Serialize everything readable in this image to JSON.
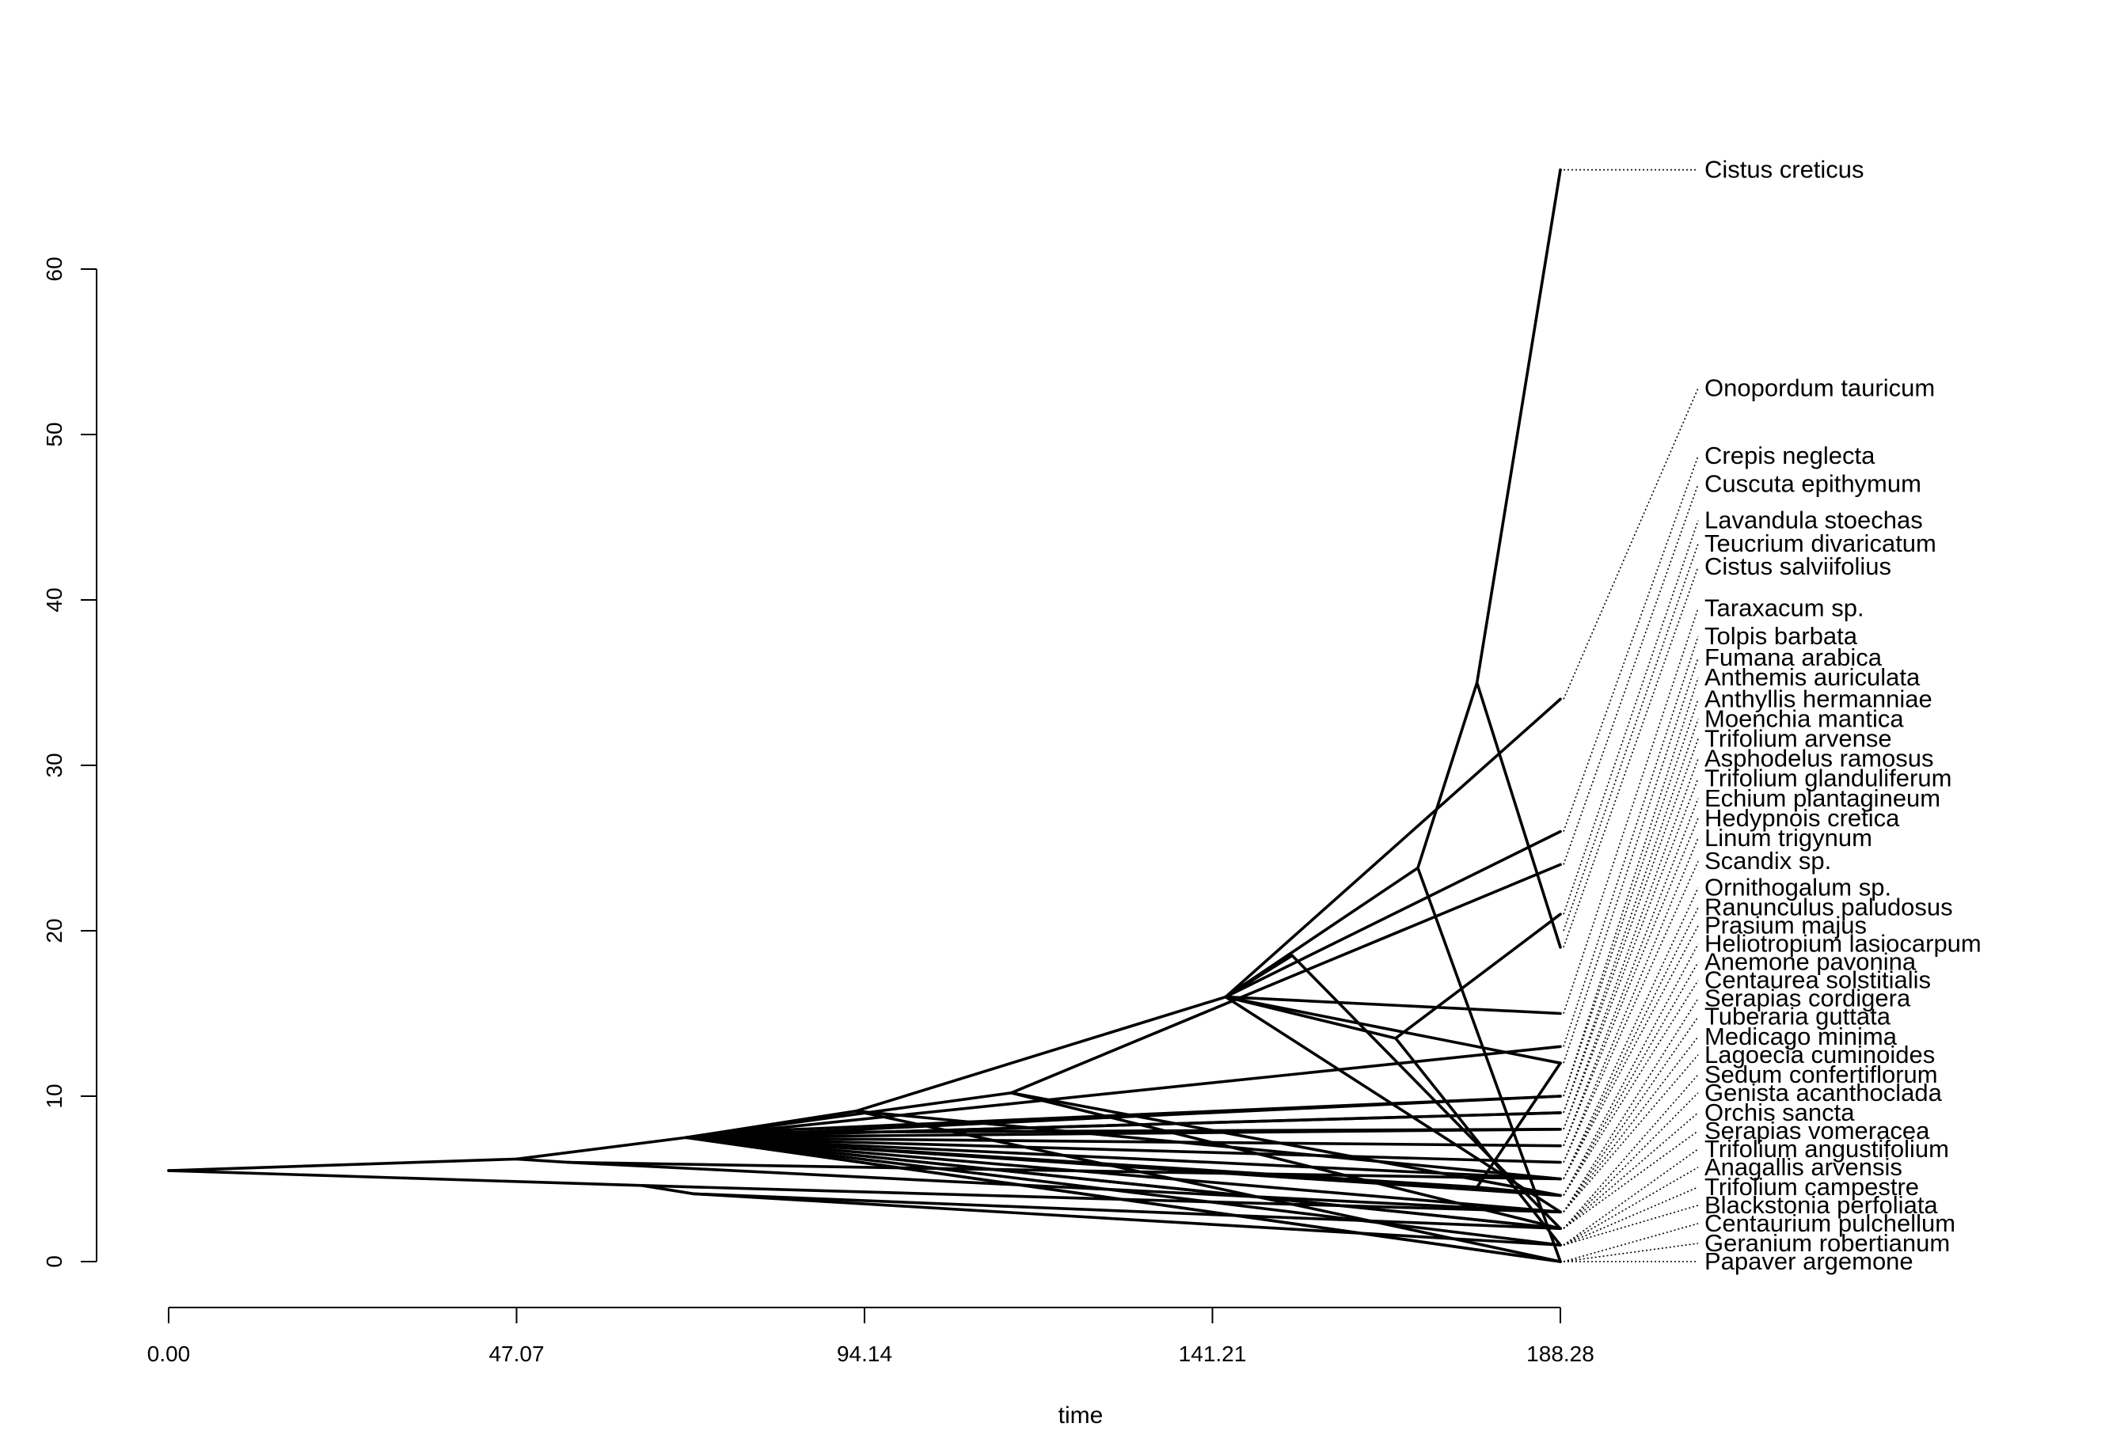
{
  "chart_data": {
    "type": "line",
    "title": "",
    "xlabel": "time",
    "ylabel": "",
    "xlim": [
      0,
      188.28
    ],
    "ylim": [
      0,
      60
    ],
    "x_ticks": [
      "0.00",
      "47.07",
      "94.14",
      "141.21",
      "188.28"
    ],
    "y_ticks": [
      "0",
      "10",
      "20",
      "30",
      "40",
      "50",
      "60"
    ],
    "grid": false,
    "legend": "none",
    "tips": [
      {
        "name": "Cistus creticus",
        "y": 66,
        "label_y": 66
      },
      {
        "name": "Onopordum tauricum",
        "y": 34,
        "label_y": 52.8
      },
      {
        "name": "Crepis neglecta",
        "y": 26,
        "label_y": 48.7
      },
      {
        "name": "Cuscuta epithymum",
        "y": 24,
        "label_y": 47.0
      },
      {
        "name": "Lavandula stoechas",
        "y": 21,
        "label_y": 44.8
      },
      {
        "name": "Teucrium divaricatum",
        "y": 20,
        "label_y": 43.4
      },
      {
        "name": "Cistus salviifolius",
        "y": 19,
        "label_y": 42.0
      },
      {
        "name": "Taraxacum sp.",
        "y": 15,
        "label_y": 39.5
      },
      {
        "name": "Tolpis barbata",
        "y": 13,
        "label_y": 37.8
      },
      {
        "name": "Fumana arabica",
        "y": 12,
        "label_y": 36.5
      },
      {
        "name": "Anthemis auriculata",
        "y": 10,
        "label_y": 35.3
      },
      {
        "name": "Anthyllis hermanniae",
        "y": 10,
        "label_y": 34.0
      },
      {
        "name": "Moenchia mantica",
        "y": 9,
        "label_y": 32.8
      },
      {
        "name": "Trifolium arvense",
        "y": 9,
        "label_y": 31.6
      },
      {
        "name": "Asphodelus ramosus",
        "y": 8,
        "label_y": 30.4
      },
      {
        "name": "Trifolium glanduliferum",
        "y": 8,
        "label_y": 29.2
      },
      {
        "name": "Echium plantagineum",
        "y": 7,
        "label_y": 28.0
      },
      {
        "name": "Hedypnois cretica",
        "y": 7,
        "label_y": 26.8
      },
      {
        "name": "Linum trigynum",
        "y": 6,
        "label_y": 25.6
      },
      {
        "name": "Scandix sp.",
        "y": 6,
        "label_y": 24.2
      },
      {
        "name": "Ornithogalum sp.",
        "y": 5,
        "label_y": 22.6
      },
      {
        "name": "Ranunculus paludosus",
        "y": 5,
        "label_y": 21.4
      },
      {
        "name": "Prasium majus",
        "y": 5,
        "label_y": 20.3
      },
      {
        "name": "Heliotropium lasiocarpum",
        "y": 4,
        "label_y": 19.2
      },
      {
        "name": "Anemone pavonina",
        "y": 4,
        "label_y": 18.1
      },
      {
        "name": "Centaurea solstitialis",
        "y": 4,
        "label_y": 17.0
      },
      {
        "name": "Serapias cordigera",
        "y": 3,
        "label_y": 15.9
      },
      {
        "name": "Tuberaria guttata",
        "y": 3,
        "label_y": 14.8
      },
      {
        "name": "Medicago minima",
        "y": 3,
        "label_y": 13.6
      },
      {
        "name": "Lagoecia cuminoides",
        "y": 3,
        "label_y": 12.5
      },
      {
        "name": "Sedum confertiflorum",
        "y": 2,
        "label_y": 11.3
      },
      {
        "name": "Genista acanthoclada",
        "y": 2,
        "label_y": 10.2
      },
      {
        "name": "Orchis sancta",
        "y": 2,
        "label_y": 9.0
      },
      {
        "name": "Serapias vomeracea",
        "y": 2,
        "label_y": 7.9
      },
      {
        "name": "Trifolium angustifolium",
        "y": 1,
        "label_y": 6.8
      },
      {
        "name": "Anagallis arvensis",
        "y": 1,
        "label_y": 5.7
      },
      {
        "name": "Trifolium campestre",
        "y": 1,
        "label_y": 4.5
      },
      {
        "name": "Blackstonia perfoliata",
        "y": 1,
        "label_y": 3.4
      },
      {
        "name": "Centaurium pulchellum",
        "y": 0,
        "label_y": 2.3
      },
      {
        "name": "Geranium robertianum",
        "y": 0,
        "label_y": 1.1
      },
      {
        "name": "Papaver argemone",
        "y": 0,
        "label_y": 0.0
      }
    ],
    "branches": [
      [
        0,
        5.5,
        47.07,
        6.2
      ],
      [
        0,
        5.5,
        64,
        4.6
      ],
      [
        47.07,
        6.2,
        54,
        6.0
      ],
      [
        54,
        6.0,
        188.28,
        3.0
      ],
      [
        54,
        6.0,
        188.28,
        5.0
      ],
      [
        64,
        4.6,
        188.28,
        3.0
      ],
      [
        64,
        4.6,
        71,
        4.1
      ],
      [
        71,
        4.1,
        188.28,
        1.0
      ],
      [
        71,
        4.1,
        188.28,
        2.0
      ],
      [
        47.07,
        6.2,
        70,
        7.5
      ],
      [
        70,
        7.5,
        188.28,
        2.0
      ],
      [
        70,
        7.5,
        75,
        7.8
      ],
      [
        75,
        7.8,
        188.28,
        8.0
      ],
      [
        75,
        7.8,
        188.28,
        10.0
      ],
      [
        70,
        7.5,
        93,
        9.1
      ],
      [
        93,
        9.1,
        143,
        16.0
      ],
      [
        143,
        16.0,
        188.28,
        34.0
      ],
      [
        143,
        16.0,
        188.28,
        26.0
      ],
      [
        143,
        16.0,
        188.28,
        15.0
      ],
      [
        143,
        16.0,
        188.28,
        12.0
      ],
      [
        143,
        16.0,
        188.28,
        3.0
      ],
      [
        143,
        16.0,
        152,
        18.5
      ],
      [
        152,
        18.5,
        188.28,
        2.0
      ],
      [
        143,
        16.0,
        166,
        13.5
      ],
      [
        166,
        13.5,
        188.28,
        21.0
      ],
      [
        166,
        13.5,
        188.28,
        1.0
      ],
      [
        93,
        9.1,
        188.28,
        0.0
      ],
      [
        93,
        9.1,
        188.28,
        5.0
      ],
      [
        70,
        7.5,
        114,
        10.2
      ],
      [
        114,
        10.2,
        188.28,
        24.0
      ],
      [
        114,
        10.2,
        188.28,
        4.0
      ],
      [
        114,
        10.2,
        188.28,
        2.0
      ],
      [
        70,
        7.5,
        188.28,
        7.0
      ],
      [
        70,
        7.5,
        188.28,
        9.0
      ],
      [
        70,
        7.5,
        188.28,
        0.0
      ],
      [
        70,
        7.5,
        188.28,
        4.0
      ],
      [
        70,
        7.5,
        188.28,
        13.0
      ],
      [
        70,
        7.5,
        188.28,
        1.0
      ],
      [
        70,
        7.5,
        188.28,
        3.0
      ],
      [
        70,
        7.5,
        188.28,
        6.0
      ],
      [
        70,
        7.5,
        188.28,
        10.0
      ],
      [
        70,
        7.5,
        188.28,
        9.0
      ],
      [
        70,
        7.5,
        188.28,
        5.0
      ],
      [
        70,
        7.5,
        188.28,
        2.0
      ],
      [
        70,
        7.5,
        188.28,
        0.0
      ],
      [
        70,
        7.5,
        188.28,
        8.0
      ],
      [
        70,
        7.5,
        177,
        4.5
      ],
      [
        177,
        4.5,
        188.28,
        12.0
      ],
      [
        177,
        4.5,
        188.28,
        4.0
      ],
      [
        143,
        16.0,
        169,
        23.8
      ],
      [
        169,
        23.8,
        188.28,
        0.0
      ],
      [
        169,
        23.8,
        177,
        35.0
      ],
      [
        177,
        35.0,
        188.28,
        66.0
      ],
      [
        177,
        35.0,
        188.28,
        19.0
      ]
    ]
  }
}
